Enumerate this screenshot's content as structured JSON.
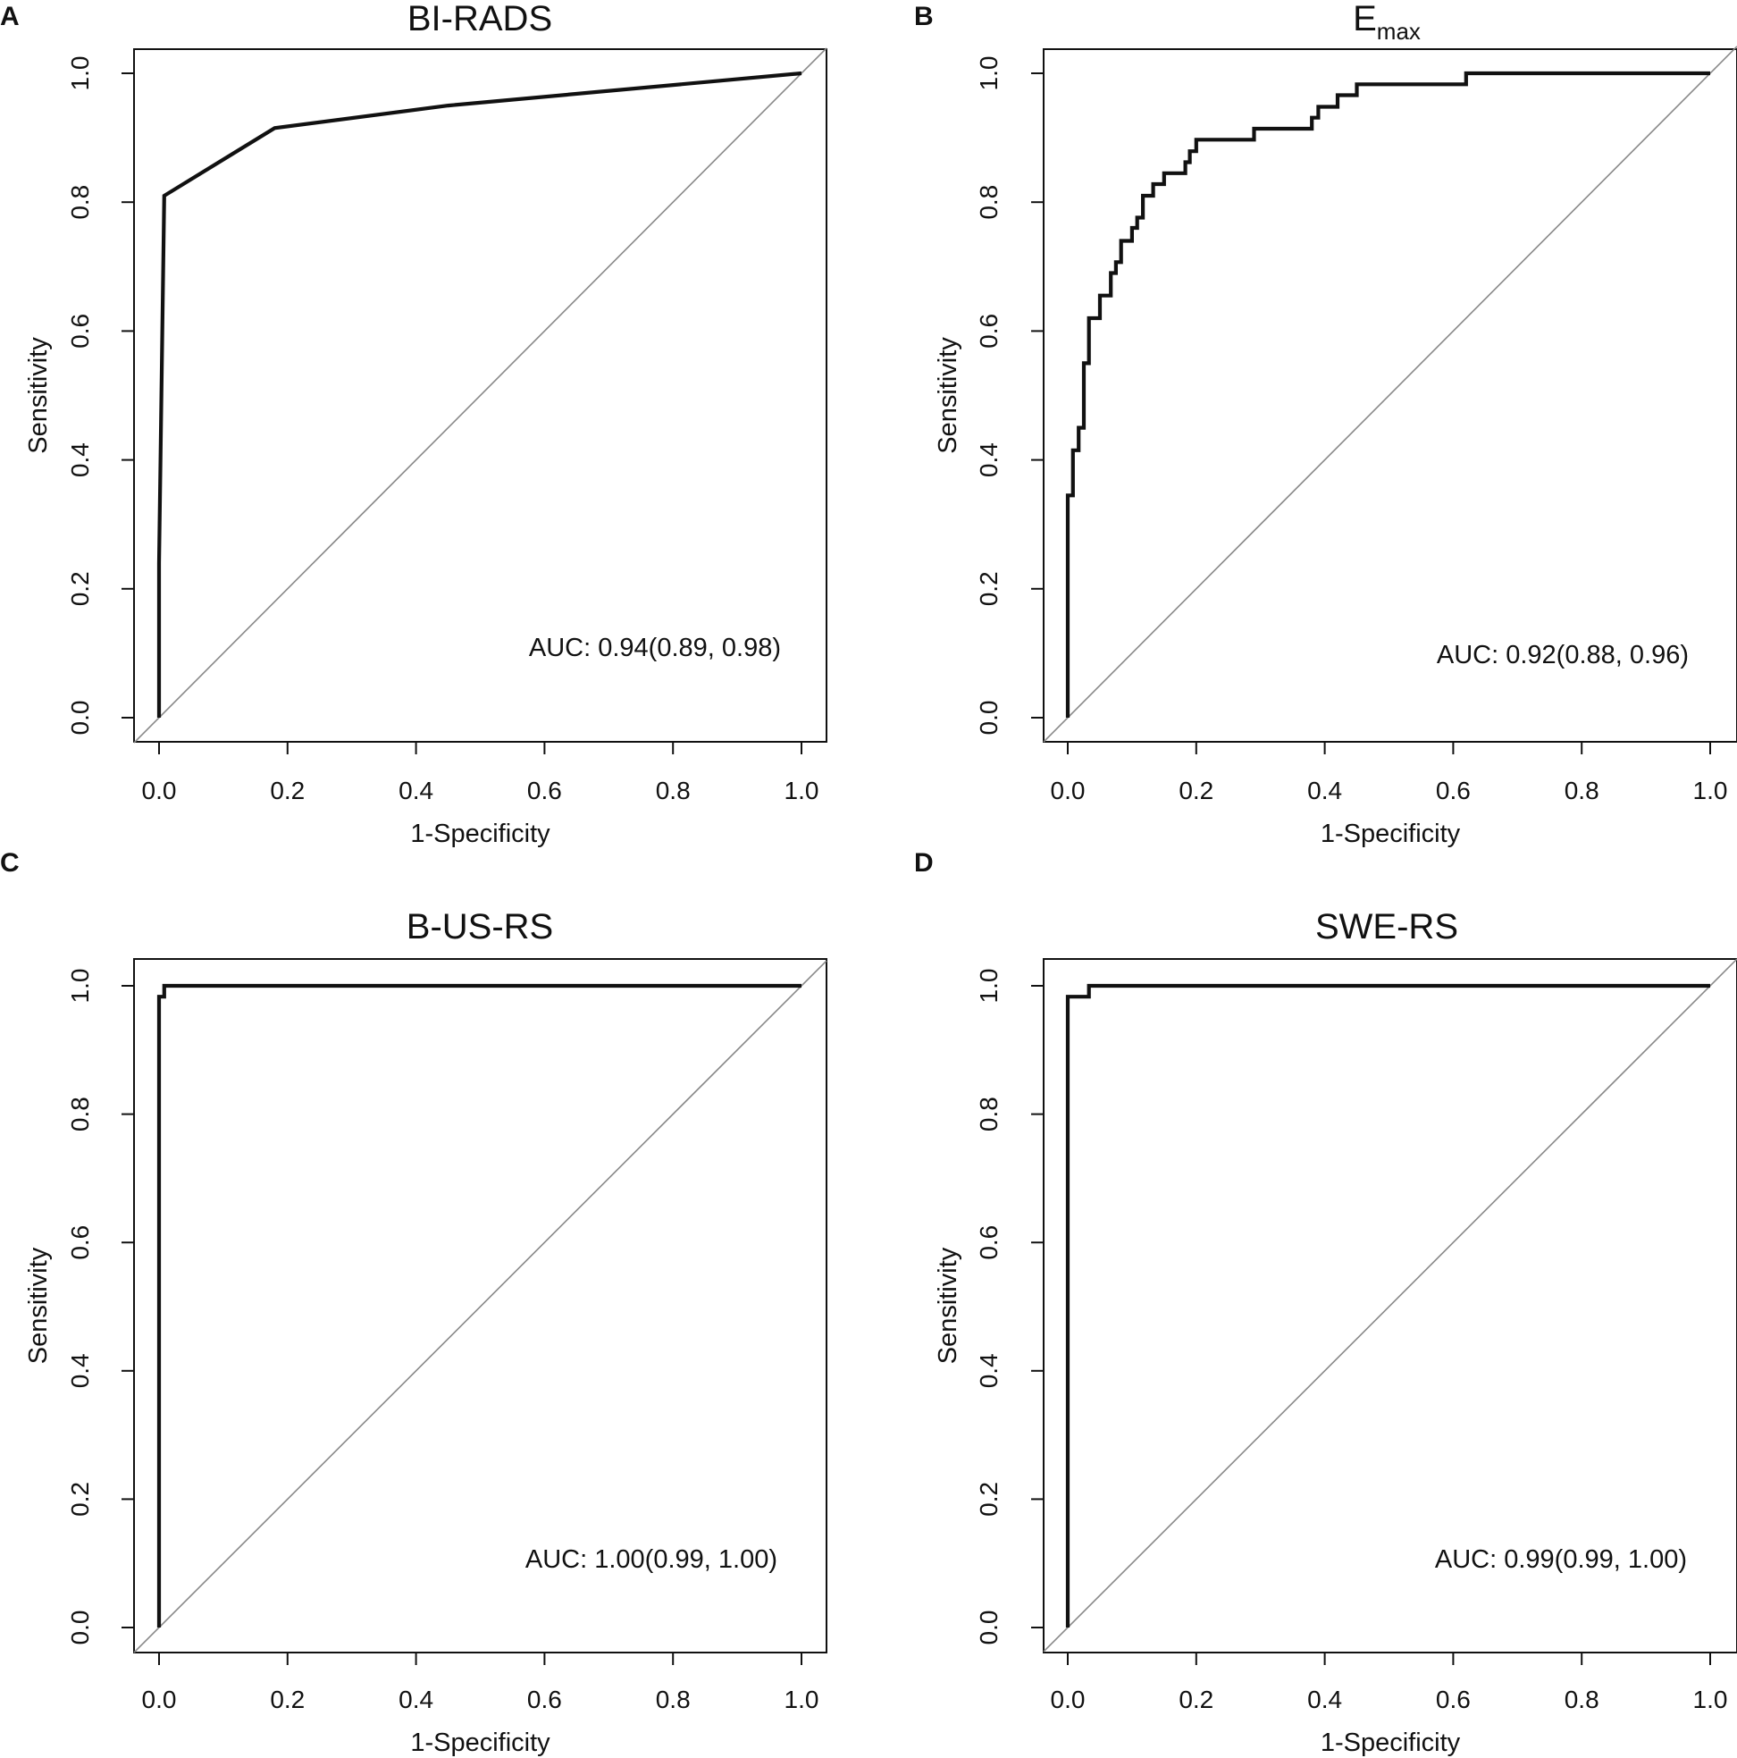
{
  "figure": {
    "background": "#ffffff",
    "line_color": "#111111",
    "diagonal_color": "#888888"
  },
  "chart_data": [
    {
      "type": "line",
      "panel_label": "A",
      "title": "BI-RADS",
      "title_subscript": "",
      "xlabel": "1-Specificity",
      "ylabel": "Sensitivity",
      "xlim": [
        0.0,
        1.0
      ],
      "ylim": [
        0.0,
        1.0
      ],
      "xticks": [
        "0.0",
        "0.2",
        "0.4",
        "0.6",
        "0.8",
        "1.0"
      ],
      "yticks": [
        "0.0",
        "0.2",
        "0.4",
        "0.6",
        "0.8",
        "1.0"
      ],
      "annotation": "AUC: 0.94(0.89, 0.98)",
      "reference_line": [
        [
          0,
          0
        ],
        [
          1,
          1
        ]
      ],
      "x": [
        0.0,
        0.0,
        0.008,
        0.18,
        0.45,
        1.0
      ],
      "y": [
        0.0,
        0.24,
        0.81,
        0.915,
        0.95,
        1.0
      ]
    },
    {
      "type": "line",
      "panel_label": "B",
      "title": "E",
      "title_subscript": "max",
      "xlabel": "1-Specificity",
      "ylabel": "Sensitivity",
      "xlim": [
        0.0,
        1.0
      ],
      "ylim": [
        0.0,
        1.0
      ],
      "xticks": [
        "0.0",
        "0.2",
        "0.4",
        "0.6",
        "0.8",
        "1.0"
      ],
      "yticks": [
        "0.0",
        "0.2",
        "0.4",
        "0.6",
        "0.8",
        "1.0"
      ],
      "annotation": "AUC: 0.92(0.88, 0.96)",
      "reference_line": [
        [
          0,
          0
        ],
        [
          1,
          1
        ]
      ],
      "x": [
        0.0,
        0.0,
        0.008,
        0.008,
        0.017,
        0.017,
        0.025,
        0.025,
        0.033,
        0.033,
        0.05,
        0.05,
        0.067,
        0.067,
        0.075,
        0.075,
        0.083,
        0.083,
        0.1,
        0.1,
        0.108,
        0.108,
        0.117,
        0.117,
        0.133,
        0.133,
        0.15,
        0.15,
        0.183,
        0.183,
        0.19,
        0.19,
        0.2,
        0.2,
        0.29,
        0.29,
        0.38,
        0.38,
        0.39,
        0.39,
        0.4,
        0.4,
        0.42,
        0.42,
        0.45,
        0.45,
        0.47,
        0.47,
        0.62,
        0.62,
        1.0
      ],
      "y": [
        0.0,
        0.345,
        0.345,
        0.415,
        0.415,
        0.45,
        0.45,
        0.55,
        0.55,
        0.62,
        0.62,
        0.655,
        0.655,
        0.69,
        0.69,
        0.707,
        0.707,
        0.74,
        0.74,
        0.76,
        0.76,
        0.776,
        0.776,
        0.81,
        0.81,
        0.828,
        0.828,
        0.845,
        0.845,
        0.862,
        0.862,
        0.879,
        0.879,
        0.897,
        0.897,
        0.914,
        0.914,
        0.931,
        0.931,
        0.948,
        0.948,
        0.948,
        0.948,
        0.966,
        0.966,
        0.983,
        0.983,
        0.983,
        0.983,
        1.0,
        1.0
      ]
    },
    {
      "type": "line",
      "panel_label": "C",
      "title": "B-US-RS",
      "title_subscript": "",
      "xlabel": "1-Specificity",
      "ylabel": "Sensitivity",
      "xlim": [
        0.0,
        1.0
      ],
      "ylim": [
        0.0,
        1.0
      ],
      "xticks": [
        "0.0",
        "0.2",
        "0.4",
        "0.6",
        "0.8",
        "1.0"
      ],
      "yticks": [
        "0.0",
        "0.2",
        "0.4",
        "0.6",
        "0.8",
        "1.0"
      ],
      "annotation": "AUC: 1.00(0.99, 1.00)",
      "reference_line": [
        [
          0,
          0
        ],
        [
          1,
          1
        ]
      ],
      "x": [
        0.0,
        0.0,
        0.008,
        0.008,
        1.0
      ],
      "y": [
        0.0,
        0.983,
        0.983,
        1.0,
        1.0
      ]
    },
    {
      "type": "line",
      "panel_label": "D",
      "title": "SWE-RS",
      "title_subscript": "",
      "xlabel": "1-Specificity",
      "ylabel": "Sensitivity",
      "xlim": [
        0.0,
        1.0
      ],
      "ylim": [
        0.0,
        1.0
      ],
      "xticks": [
        "0.0",
        "0.2",
        "0.4",
        "0.6",
        "0.8",
        "1.0"
      ],
      "yticks": [
        "0.0",
        "0.2",
        "0.4",
        "0.6",
        "0.8",
        "1.0"
      ],
      "annotation": "AUC: 0.99(0.99, 1.00)",
      "reference_line": [
        [
          0,
          0
        ],
        [
          1,
          1
        ]
      ],
      "x": [
        0.0,
        0.0,
        0.033,
        0.033,
        1.0
      ],
      "y": [
        0.0,
        0.983,
        0.983,
        1.0,
        1.0
      ]
    }
  ]
}
